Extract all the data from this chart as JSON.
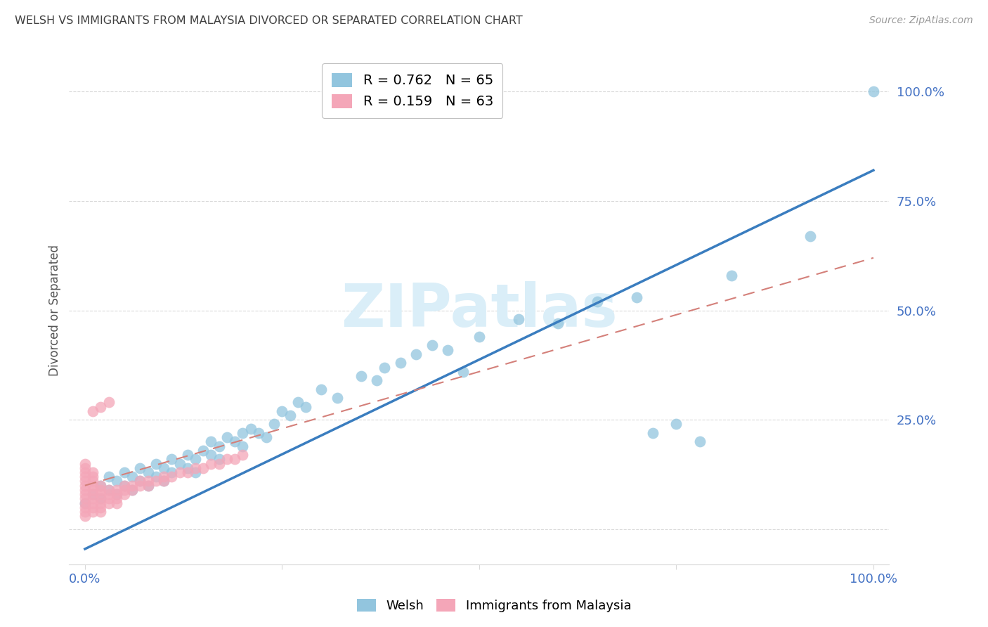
{
  "title": "WELSH VS IMMIGRANTS FROM MALAYSIA DIVORCED OR SEPARATED CORRELATION CHART",
  "source": "Source: ZipAtlas.com",
  "ylabel": "Divorced or Separated",
  "xlim": [
    -0.02,
    1.02
  ],
  "ylim": [
    -0.08,
    1.08
  ],
  "welsh_R": 0.762,
  "welsh_N": 65,
  "malaysia_R": 0.159,
  "malaysia_N": 63,
  "welsh_color": "#92c5de",
  "malaysia_color": "#f4a6b8",
  "welsh_line_color": "#3a7dbf",
  "malaysia_line_color": "#d4807a",
  "background_color": "#ffffff",
  "watermark_color": "#daeef8",
  "tick_label_color": "#4472c4",
  "title_color": "#404040",
  "ylabel_color": "#555555",
  "grid_color": "#d9d9d9",
  "legend_edge_color": "#c0c0c0",
  "welsh_line_x0": 0.0,
  "welsh_line_y0": -0.045,
  "welsh_line_x1": 1.0,
  "welsh_line_y1": 0.82,
  "malaysia_line_x0": 0.0,
  "malaysia_line_y0": 0.1,
  "malaysia_line_x1": 1.0,
  "malaysia_line_y1": 0.62,
  "welsh_x": [
    0.0,
    0.01,
    0.02,
    0.02,
    0.03,
    0.03,
    0.04,
    0.04,
    0.05,
    0.05,
    0.06,
    0.06,
    0.07,
    0.07,
    0.08,
    0.08,
    0.09,
    0.09,
    0.1,
    0.1,
    0.11,
    0.11,
    0.12,
    0.13,
    0.13,
    0.14,
    0.14,
    0.15,
    0.16,
    0.16,
    0.17,
    0.17,
    0.18,
    0.19,
    0.2,
    0.2,
    0.21,
    0.22,
    0.23,
    0.24,
    0.25,
    0.26,
    0.27,
    0.28,
    0.3,
    0.32,
    0.35,
    0.37,
    0.38,
    0.4,
    0.42,
    0.44,
    0.46,
    0.48,
    0.5,
    0.55,
    0.6,
    0.65,
    0.7,
    0.72,
    0.75,
    0.82,
    0.92,
    1.0,
    0.78
  ],
  "welsh_y": [
    0.06,
    0.08,
    0.07,
    0.1,
    0.09,
    0.12,
    0.08,
    0.11,
    0.1,
    0.13,
    0.09,
    0.12,
    0.11,
    0.14,
    0.1,
    0.13,
    0.12,
    0.15,
    0.11,
    0.14,
    0.13,
    0.16,
    0.15,
    0.14,
    0.17,
    0.13,
    0.16,
    0.18,
    0.17,
    0.2,
    0.16,
    0.19,
    0.21,
    0.2,
    0.19,
    0.22,
    0.23,
    0.22,
    0.21,
    0.24,
    0.27,
    0.26,
    0.29,
    0.28,
    0.32,
    0.3,
    0.35,
    0.34,
    0.37,
    0.38,
    0.4,
    0.42,
    0.41,
    0.36,
    0.44,
    0.48,
    0.47,
    0.52,
    0.53,
    0.22,
    0.24,
    0.58,
    0.67,
    1.0,
    0.2
  ],
  "malaysia_x": [
    0.0,
    0.0,
    0.0,
    0.0,
    0.0,
    0.0,
    0.0,
    0.0,
    0.0,
    0.0,
    0.0,
    0.0,
    0.0,
    0.01,
    0.01,
    0.01,
    0.01,
    0.01,
    0.01,
    0.01,
    0.01,
    0.01,
    0.01,
    0.02,
    0.02,
    0.02,
    0.02,
    0.02,
    0.02,
    0.02,
    0.03,
    0.03,
    0.03,
    0.03,
    0.04,
    0.04,
    0.04,
    0.04,
    0.05,
    0.05,
    0.05,
    0.06,
    0.06,
    0.07,
    0.07,
    0.08,
    0.08,
    0.09,
    0.1,
    0.1,
    0.11,
    0.12,
    0.13,
    0.14,
    0.15,
    0.16,
    0.17,
    0.18,
    0.19,
    0.2,
    0.01,
    0.02,
    0.03
  ],
  "malaysia_y": [
    0.06,
    0.07,
    0.08,
    0.09,
    0.1,
    0.11,
    0.12,
    0.13,
    0.14,
    0.15,
    0.04,
    0.05,
    0.03,
    0.07,
    0.08,
    0.09,
    0.1,
    0.11,
    0.12,
    0.13,
    0.05,
    0.06,
    0.04,
    0.07,
    0.08,
    0.09,
    0.1,
    0.05,
    0.06,
    0.04,
    0.08,
    0.09,
    0.06,
    0.07,
    0.08,
    0.09,
    0.06,
    0.07,
    0.08,
    0.09,
    0.1,
    0.09,
    0.1,
    0.1,
    0.11,
    0.1,
    0.11,
    0.11,
    0.12,
    0.11,
    0.12,
    0.13,
    0.13,
    0.14,
    0.14,
    0.15,
    0.15,
    0.16,
    0.16,
    0.17,
    0.27,
    0.28,
    0.29
  ]
}
